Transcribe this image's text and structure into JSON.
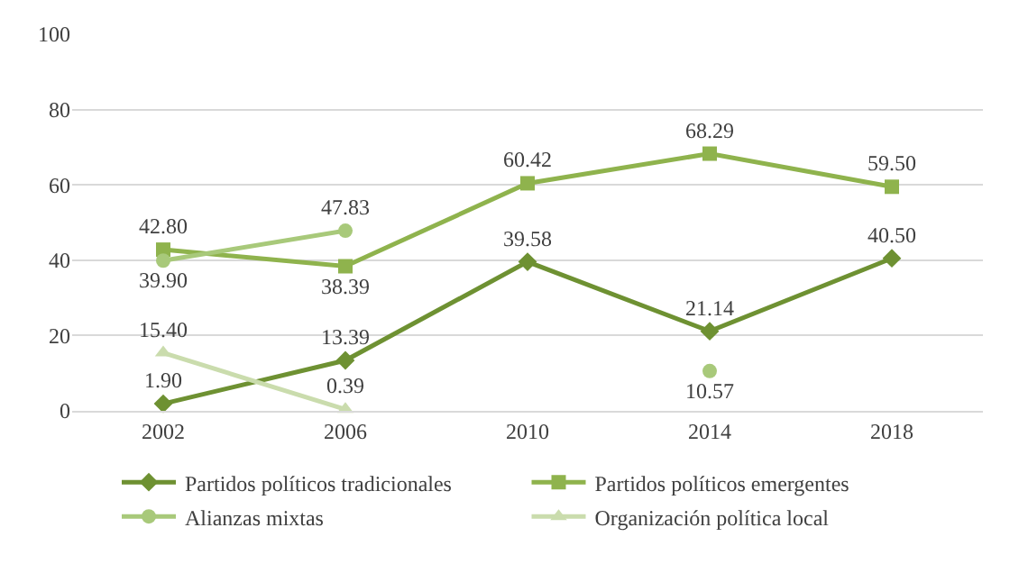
{
  "chart_data": {
    "type": "line",
    "categories": [
      "2002",
      "2006",
      "2010",
      "2014",
      "2018"
    ],
    "series": [
      {
        "name": "Partidos políticos tradicionales",
        "color": "#6e9132",
        "marker": "diamond",
        "values": [
          1.9,
          13.39,
          39.58,
          21.14,
          40.5
        ],
        "value_labels": [
          "1.90",
          "13.39",
          "39.58",
          "21.14",
          "40.50"
        ]
      },
      {
        "name": "Partidos políticos emergentes",
        "color": "#8fb34d",
        "marker": "square",
        "values": [
          42.8,
          38.39,
          60.42,
          68.29,
          59.5
        ],
        "value_labels": [
          "42.80",
          "38.39",
          "60.42",
          "68.29",
          "59.50"
        ]
      },
      {
        "name": "Alianzas mixtas",
        "color": "#a8c97a",
        "marker": "circle",
        "values": [
          39.9,
          47.83,
          null,
          10.57,
          null
        ],
        "value_labels": [
          "39.90",
          "47.83",
          null,
          "10.57",
          null
        ]
      },
      {
        "name": "Organización política local",
        "color": "#cadcad",
        "marker": "triangle",
        "values": [
          15.4,
          0.39,
          null,
          null,
          null
        ],
        "value_labels": [
          "15.40",
          "0.39",
          null,
          null,
          null
        ]
      }
    ],
    "ylim": [
      0,
      100
    ],
    "yticks": [
      0,
      20,
      40,
      60,
      80,
      100
    ],
    "grid": "y",
    "legend": "bottom"
  }
}
